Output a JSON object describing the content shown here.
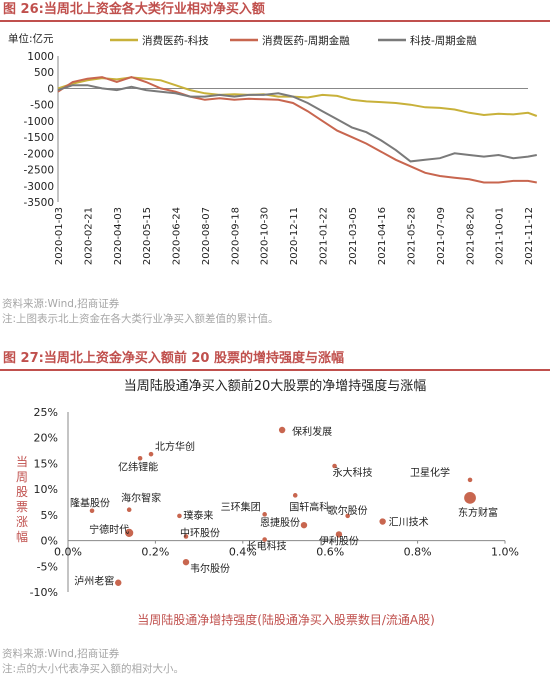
{
  "figure1": {
    "title": "图 26:当周北上资金各大类行业相对净买入额",
    "source": "资料来源:Wind,招商证券",
    "note": "注:上图表示北上资金在各大类行业净买入额差值的累计值。"
  },
  "figure2": {
    "title": "图 27:当周北上资金净买入额前 20 股票的增持强度与涨幅",
    "source": "资料来源:Wind,招商证券",
    "note": "注:点的大小代表净买入额的相对大小。"
  },
  "colors": {
    "accent": "#c0504d",
    "s1": "#c8b13a",
    "s2": "#c8664f",
    "s3": "#7a7a7a",
    "dot": "#c8664f"
  },
  "chart_data": [
    {
      "type": "line",
      "unit_label": "单位:亿元",
      "ylim": [
        -3500,
        1000
      ],
      "yticks": [
        -3500,
        -3000,
        -2500,
        -2000,
        -1500,
        -1000,
        -500,
        0,
        500,
        1000
      ],
      "x_ticks": [
        "2020-01-03",
        "2020-02-21",
        "2020-04-03",
        "2020-05-15",
        "2020-06-24",
        "2020-08-07",
        "2020-09-18",
        "2020-10-30",
        "2020-12-11",
        "2021-01-22",
        "2021-03-05",
        "2021-04-16",
        "2021-05-28",
        "2021-07-09",
        "2021-08-20",
        "2021-10-01",
        "2021-11-12"
      ],
      "legend_position": "top",
      "series": [
        {
          "name": "消费医药-科技",
          "points": [
            [
              0,
              0
            ],
            [
              0.5,
              150
            ],
            [
              1,
              250
            ],
            [
              1.5,
              320
            ],
            [
              2,
              280
            ],
            [
              2.5,
              340
            ],
            [
              3,
              300
            ],
            [
              3.5,
              250
            ],
            [
              4,
              100
            ],
            [
              4.5,
              -50
            ],
            [
              5,
              -150
            ],
            [
              5.5,
              -200
            ],
            [
              6,
              -180
            ],
            [
              6.5,
              -200
            ],
            [
              7,
              -180
            ],
            [
              7.5,
              -250
            ],
            [
              8,
              -250
            ],
            [
              8.5,
              -280
            ],
            [
              9,
              -200
            ],
            [
              9.5,
              -230
            ],
            [
              10,
              -350
            ],
            [
              10.5,
              -400
            ],
            [
              11,
              -420
            ],
            [
              11.5,
              -450
            ],
            [
              12,
              -500
            ],
            [
              12.5,
              -580
            ],
            [
              13,
              -600
            ],
            [
              13.5,
              -650
            ],
            [
              14,
              -750
            ],
            [
              14.5,
              -820
            ],
            [
              15,
              -780
            ],
            [
              15.5,
              -800
            ],
            [
              16,
              -750
            ],
            [
              16.3,
              -850
            ]
          ]
        },
        {
          "name": "消费医药-周期金融",
          "points": [
            [
              0,
              -100
            ],
            [
              0.5,
              200
            ],
            [
              1,
              300
            ],
            [
              1.5,
              350
            ],
            [
              2,
              200
            ],
            [
              2.5,
              350
            ],
            [
              3,
              200
            ],
            [
              3.5,
              0
            ],
            [
              4,
              -100
            ],
            [
              4.5,
              -250
            ],
            [
              5,
              -350
            ],
            [
              5.5,
              -300
            ],
            [
              6,
              -350
            ],
            [
              6.5,
              -320
            ],
            [
              7,
              -330
            ],
            [
              7.5,
              -350
            ],
            [
              8,
              -450
            ],
            [
              8.5,
              -700
            ],
            [
              9,
              -1000
            ],
            [
              9.5,
              -1300
            ],
            [
              10,
              -1500
            ],
            [
              10.5,
              -1700
            ],
            [
              11,
              -1950
            ],
            [
              11.5,
              -2200
            ],
            [
              12,
              -2400
            ],
            [
              12.5,
              -2600
            ],
            [
              13,
              -2700
            ],
            [
              13.5,
              -2750
            ],
            [
              14,
              -2800
            ],
            [
              14.5,
              -2900
            ],
            [
              15,
              -2900
            ],
            [
              15.5,
              -2850
            ],
            [
              16,
              -2850
            ],
            [
              16.3,
              -2900
            ]
          ]
        },
        {
          "name": "科技-周期金融",
          "points": [
            [
              0,
              -50
            ],
            [
              0.5,
              100
            ],
            [
              1,
              100
            ],
            [
              1.5,
              0
            ],
            [
              2,
              -50
            ],
            [
              2.5,
              50
            ],
            [
              3,
              -50
            ],
            [
              3.5,
              -100
            ],
            [
              4,
              -150
            ],
            [
              4.5,
              -250
            ],
            [
              5,
              -250
            ],
            [
              5.5,
              -200
            ],
            [
              6,
              -250
            ],
            [
              6.5,
              -200
            ],
            [
              7,
              -200
            ],
            [
              7.5,
              -150
            ],
            [
              8,
              -250
            ],
            [
              8.5,
              -450
            ],
            [
              9,
              -700
            ],
            [
              9.5,
              -950
            ],
            [
              10,
              -1200
            ],
            [
              10.5,
              -1350
            ],
            [
              11,
              -1600
            ],
            [
              11.5,
              -1900
            ],
            [
              12,
              -2250
            ],
            [
              12.5,
              -2200
            ],
            [
              13,
              -2150
            ],
            [
              13.5,
              -2000
            ],
            [
              14,
              -2050
            ],
            [
              14.5,
              -2100
            ],
            [
              15,
              -2050
            ],
            [
              15.5,
              -2150
            ],
            [
              16,
              -2100
            ],
            [
              16.3,
              -2050
            ]
          ]
        }
      ]
    },
    {
      "type": "scatter",
      "title": "当周陆股通净买入额前20大股票的净增持强度与涨幅",
      "xlabel": "当周陆股通净增持强度(陆股通净买入股票数目/流通A股)",
      "ylabel": "当周股票涨幅",
      "xlim": [
        0,
        0.01
      ],
      "ylim": [
        -0.1,
        0.25
      ],
      "xticks": [
        "0.0%",
        "0.2%",
        "0.4%",
        "0.6%",
        "0.8%",
        "1.0%"
      ],
      "yticks": [
        "-10%",
        "-5%",
        "0%",
        "5%",
        "10%",
        "15%",
        "20%",
        "25%"
      ],
      "points": [
        {
          "label": "保利发展",
          "x": 0.0049,
          "y": 0.215,
          "size": 2
        },
        {
          "label": "北方华创",
          "x": 0.0019,
          "y": 0.168,
          "size": 1
        },
        {
          "label": "亿纬锂能",
          "x": 0.00165,
          "y": 0.16,
          "size": 1
        },
        {
          "label": "永大科技",
          "x": 0.0061,
          "y": 0.145,
          "size": 1
        },
        {
          "label": "卫星化学",
          "x": 0.0092,
          "y": 0.118,
          "size": 1
        },
        {
          "label": "国轩高科",
          "x": 0.0052,
          "y": 0.088,
          "size": 1
        },
        {
          "label": "东方财富",
          "x": 0.0092,
          "y": 0.083,
          "size": 5
        },
        {
          "label": "隆基股份",
          "x": 0.00055,
          "y": 0.058,
          "size": 1
        },
        {
          "label": "海尔智家",
          "x": 0.0014,
          "y": 0.06,
          "size": 1
        },
        {
          "label": "三环集团",
          "x": 0.0045,
          "y": 0.051,
          "size": 1
        },
        {
          "label": "璞泰来",
          "x": 0.00255,
          "y": 0.048,
          "size": 1
        },
        {
          "label": "歌尔股份",
          "x": 0.0064,
          "y": 0.048,
          "size": 1
        },
        {
          "label": "汇川技术",
          "x": 0.0072,
          "y": 0.037,
          "size": 2
        },
        {
          "label": "恩捷股份",
          "x": 0.0054,
          "y": 0.03,
          "size": 2
        },
        {
          "label": "宁德时代",
          "x": 0.0014,
          "y": 0.015,
          "size": 3
        },
        {
          "label": "中环股份",
          "x": 0.0027,
          "y": 0.008,
          "size": 1
        },
        {
          "label": "伊利股份",
          "x": 0.0062,
          "y": 0.012,
          "size": 2
        },
        {
          "label": "长电科技",
          "x": 0.0045,
          "y": 0.002,
          "size": 1
        },
        {
          "label": "韦尔股份",
          "x": 0.0027,
          "y": -0.042,
          "size": 2
        },
        {
          "label": "泸州老窖",
          "x": 0.00115,
          "y": -0.082,
          "size": 2
        }
      ]
    }
  ]
}
